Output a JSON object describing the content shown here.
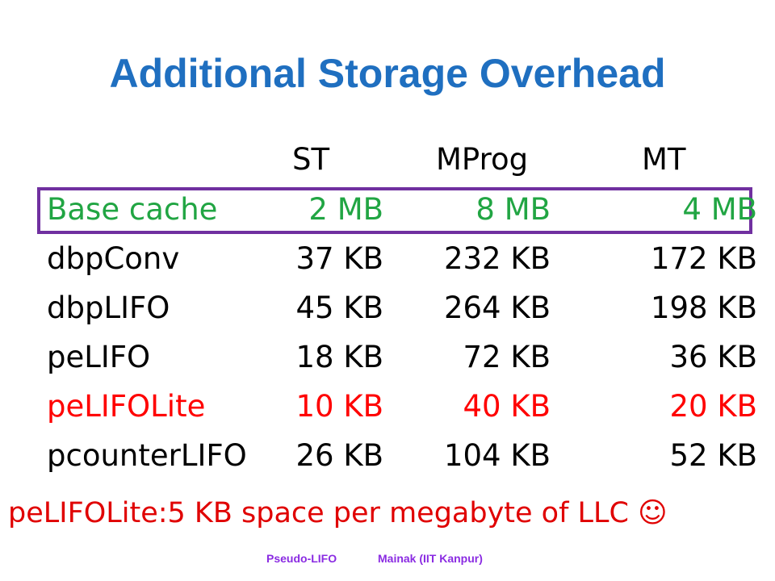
{
  "header": {
    "title": "Additional Storage Overhead"
  },
  "table": {
    "columns": [
      "ST",
      "MProg",
      "MT"
    ],
    "rows": [
      [
        "Base cache",
        "2 MB",
        "8 MB",
        "4 MB"
      ],
      [
        "dbpConv",
        "37 KB",
        "232 KB",
        "172 KB"
      ],
      [
        "dbpLIFO",
        "45 KB",
        "264 KB",
        "198 KB"
      ],
      [
        "peLIFO",
        "18 KB",
        "72 KB",
        "36 KB"
      ],
      [
        "peLIFOLite",
        "10 KB",
        "40 KB",
        "20 KB"
      ],
      [
        "pcounterLIFO",
        "26 KB",
        "104 KB",
        "52 KB"
      ]
    ]
  },
  "note": "peLIFOLite:5 KB space per megabyte of LLC ☺",
  "footer": {
    "left": "Pseudo-LIFO",
    "right": "Mainak (IIT Kanpur)"
  }
}
